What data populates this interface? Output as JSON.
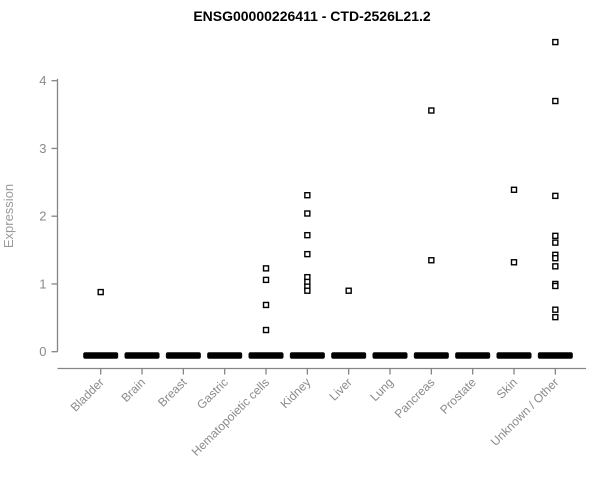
{
  "figure": {
    "title": "ENSG00000226411 - CTD-2526L21.2"
  },
  "chart_data": {
    "type": "scatter",
    "subtype": "strip-plot-by-category",
    "title": "ENSG00000226411 - CTD-2526L21.2",
    "xlabel": "",
    "ylabel": "Expression",
    "ylim": [
      0,
      4.7
    ],
    "yticks": [
      0,
      1,
      2,
      3,
      4
    ],
    "grid": false,
    "legend": false,
    "marker": "open-square",
    "colors": {
      "marker_stroke": "#000000",
      "marker_fill": "#ffffff",
      "zero_bar": "#000000",
      "axis_line": "#858585",
      "tick_label": "#8a8a8a",
      "title": "#000000",
      "background": "#ffffff"
    },
    "categories": [
      "Bladder",
      "Brain",
      "Breast",
      "Gastric",
      "Hematopoietic cells",
      "Kidney",
      "Liver",
      "Lung",
      "Pancreas",
      "Prostate",
      "Skin",
      "Unknown / Other"
    ],
    "series": [
      {
        "category": "Bladder",
        "values": [
          0.88
        ],
        "zero_cluster": true
      },
      {
        "category": "Brain",
        "values": [],
        "zero_cluster": true
      },
      {
        "category": "Breast",
        "values": [],
        "zero_cluster": true
      },
      {
        "category": "Gastric",
        "values": [],
        "zero_cluster": true
      },
      {
        "category": "Hematopoietic cells",
        "values": [
          1.23,
          1.06,
          0.69,
          0.32
        ],
        "zero_cluster": true
      },
      {
        "category": "Kidney",
        "values": [
          2.31,
          2.04,
          1.72,
          1.44,
          1.1,
          1.03,
          0.96,
          0.9
        ],
        "zero_cluster": true
      },
      {
        "category": "Liver",
        "values": [
          0.9
        ],
        "zero_cluster": true
      },
      {
        "category": "Lung",
        "values": [],
        "zero_cluster": true
      },
      {
        "category": "Pancreas",
        "values": [
          3.56,
          1.35
        ],
        "zero_cluster": true
      },
      {
        "category": "Prostate",
        "values": [],
        "zero_cluster": true
      },
      {
        "category": "Skin",
        "values": [
          2.39,
          1.32
        ],
        "zero_cluster": true
      },
      {
        "category": "Unknown / Other",
        "values": [
          4.57,
          3.7,
          2.3,
          1.71,
          1.61,
          1.43,
          1.38,
          1.26,
          1.0,
          0.97,
          0.62,
          0.51
        ],
        "zero_cluster": true
      }
    ],
    "zero_bar": {
      "value": 0,
      "all_categories": true,
      "meaning": "dense cluster of overlapping points at expression 0"
    }
  }
}
